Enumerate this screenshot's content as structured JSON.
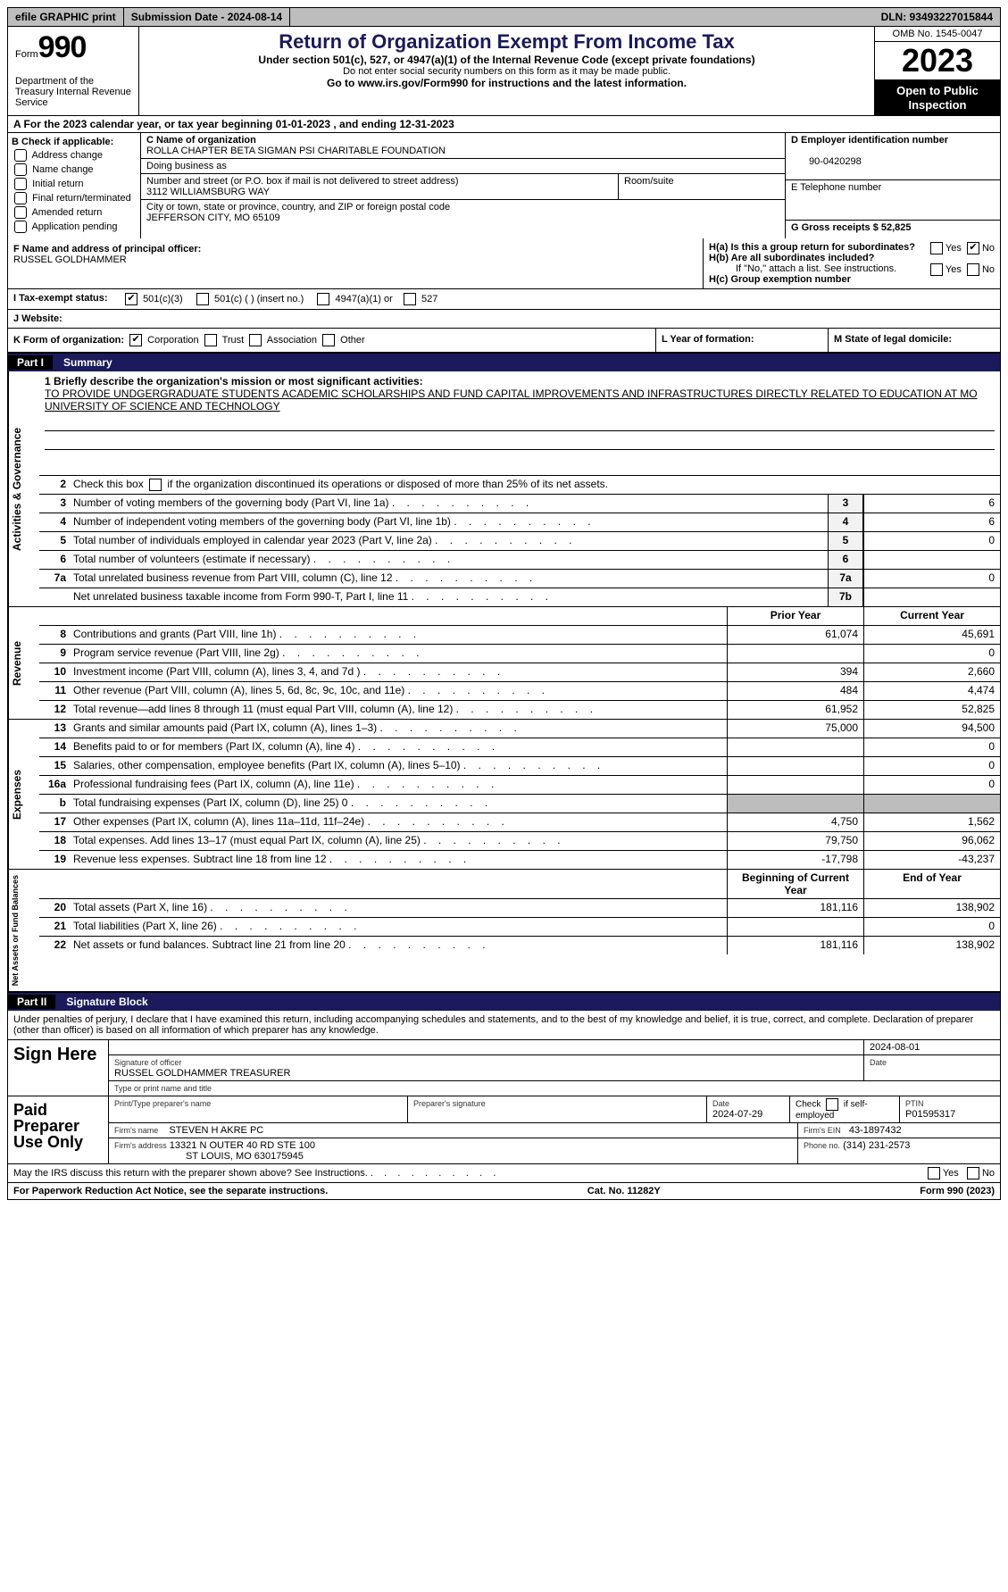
{
  "topbar": {
    "efile": "efile GRAPHIC print",
    "submission_label": "Submission Date - 2024-08-14",
    "dln": "DLN: 93493227015844"
  },
  "header": {
    "form_prefix": "Form",
    "form_number": "990",
    "dept": "Department of the Treasury Internal Revenue Service",
    "title": "Return of Organization Exempt From Income Tax",
    "subtitle": "Under section 501(c), 527, or 4947(a)(1) of the Internal Revenue Code (except private foundations)",
    "note": "Do not enter social security numbers on this form as it may be made public.",
    "link_text": "Go to www.irs.gov/Form990 for instructions and the latest information.",
    "omb": "OMB No. 1545-0047",
    "year": "2023",
    "open": "Open to Public Inspection"
  },
  "row_a": "A   For the 2023 calendar year, or tax year beginning 01-01-2023    , and ending 12-31-2023",
  "col_b": {
    "label": "B Check if applicable:",
    "items": [
      "Address change",
      "Name change",
      "Initial return",
      "Final return/terminated",
      "Amended return",
      "Application pending"
    ]
  },
  "col_c": {
    "name_label": "C Name of organization",
    "name": "ROLLA CHAPTER BETA SIGMAN PSI CHARITABLE FOUNDATION",
    "dba_label": "Doing business as",
    "addr_label": "Number and street (or P.O. box if mail is not delivered to street address)",
    "addr": "3112 WILLIAMSBURG WAY",
    "room_label": "Room/suite",
    "city_label": "City or town, state or province, country, and ZIP or foreign postal code",
    "city": "JEFFERSON CITY, MO  65109"
  },
  "col_d": {
    "ein_label": "D Employer identification number",
    "ein": "90-0420298",
    "phone_label": "E Telephone number",
    "gross_label": "G Gross receipts $ 52,825"
  },
  "f_block": {
    "label": "F  Name and address of principal officer:",
    "name": "RUSSEL GOLDHAMMER"
  },
  "h_block": {
    "ha": "H(a)  Is this a group return for subordinates?",
    "hb": "H(b)  Are all subordinates included?",
    "hb_note": "If \"No,\" attach a list. See instructions.",
    "hc": "H(c)  Group exemption number"
  },
  "i_row": {
    "label": "I    Tax-exempt status:",
    "opts": [
      "501(c)(3)",
      "501(c) (  ) (insert no.)",
      "4947(a)(1) or",
      "527"
    ]
  },
  "j_row": {
    "label": "J    Website:"
  },
  "k_row": {
    "label": "K Form of organization:",
    "opts": [
      "Corporation",
      "Trust",
      "Association",
      "Other"
    ]
  },
  "l_row": "L Year of formation:",
  "m_row": "M State of legal domicile:",
  "part1": {
    "num": "Part I",
    "title": "Summary",
    "mission_label": "1   Briefly describe the organization's mission or most significant activities:",
    "mission": "TO PROVIDE UNDGERGRADUATE STUDENTS ACADEMIC SCHOLARSHIPS AND FUND CAPITAL IMPROVEMENTS AND INFRASTRUCTURES DIRECTLY RELATED TO EDUCATION AT MO UNIVERSITY OF SCIENCE AND TECHNOLOGY",
    "line2": "2   Check this box      if the organization discontinued its operations or disposed of more than 25% of its net assets.",
    "vlabels": {
      "ag": "Activities & Governance",
      "rev": "Revenue",
      "exp": "Expenses",
      "net": "Net Assets or Fund Balances"
    },
    "gov_rows": [
      {
        "n": "3",
        "d": "Number of voting members of the governing body (Part VI, line 1a)",
        "box": "3",
        "v": "6"
      },
      {
        "n": "4",
        "d": "Number of independent voting members of the governing body (Part VI, line 1b)",
        "box": "4",
        "v": "6"
      },
      {
        "n": "5",
        "d": "Total number of individuals employed in calendar year 2023 (Part V, line 2a)",
        "box": "5",
        "v": "0"
      },
      {
        "n": "6",
        "d": "Total number of volunteers (estimate if necessary)",
        "box": "6",
        "v": ""
      },
      {
        "n": "7a",
        "d": "Total unrelated business revenue from Part VIII, column (C), line 12",
        "box": "7a",
        "v": "0"
      },
      {
        "n": "",
        "d": "Net unrelated business taxable income from Form 990-T, Part I, line 11",
        "box": "7b",
        "v": ""
      }
    ],
    "head_prior": "Prior Year",
    "head_curr": "Current Year",
    "rev_rows": [
      {
        "n": "8",
        "d": "Contributions and grants (Part VIII, line 1h)",
        "p": "61,074",
        "c": "45,691"
      },
      {
        "n": "9",
        "d": "Program service revenue (Part VIII, line 2g)",
        "p": "",
        "c": "0"
      },
      {
        "n": "10",
        "d": "Investment income (Part VIII, column (A), lines 3, 4, and 7d )",
        "p": "394",
        "c": "2,660"
      },
      {
        "n": "11",
        "d": "Other revenue (Part VIII, column (A), lines 5, 6d, 8c, 9c, 10c, and 11e)",
        "p": "484",
        "c": "4,474"
      },
      {
        "n": "12",
        "d": "Total revenue—add lines 8 through 11 (must equal Part VIII, column (A), line 12)",
        "p": "61,952",
        "c": "52,825"
      }
    ],
    "exp_rows": [
      {
        "n": "13",
        "d": "Grants and similar amounts paid (Part IX, column (A), lines 1–3)",
        "p": "75,000",
        "c": "94,500"
      },
      {
        "n": "14",
        "d": "Benefits paid to or for members (Part IX, column (A), line 4)",
        "p": "",
        "c": "0"
      },
      {
        "n": "15",
        "d": "Salaries, other compensation, employee benefits (Part IX, column (A), lines 5–10)",
        "p": "",
        "c": "0"
      },
      {
        "n": "16a",
        "d": "Professional fundraising fees (Part IX, column (A), line 11e)",
        "p": "",
        "c": "0"
      },
      {
        "n": "b",
        "d": "Total fundraising expenses (Part IX, column (D), line 25) 0",
        "p": "GRAY",
        "c": "GRAY"
      },
      {
        "n": "17",
        "d": "Other expenses (Part IX, column (A), lines 11a–11d, 11f–24e)",
        "p": "4,750",
        "c": "1,562"
      },
      {
        "n": "18",
        "d": "Total expenses. Add lines 13–17 (must equal Part IX, column (A), line 25)",
        "p": "79,750",
        "c": "96,062"
      },
      {
        "n": "19",
        "d": "Revenue less expenses. Subtract line 18 from line 12",
        "p": "-17,798",
        "c": "-43,237"
      }
    ],
    "head_begin": "Beginning of Current Year",
    "head_end": "End of Year",
    "net_rows": [
      {
        "n": "20",
        "d": "Total assets (Part X, line 16)",
        "p": "181,116",
        "c": "138,902"
      },
      {
        "n": "21",
        "d": "Total liabilities (Part X, line 26)",
        "p": "",
        "c": "0"
      },
      {
        "n": "22",
        "d": "Net assets or fund balances. Subtract line 21 from line 20",
        "p": "181,116",
        "c": "138,902"
      }
    ]
  },
  "part2": {
    "num": "Part II",
    "title": "Signature Block",
    "perjury": "Under penalties of perjury, I declare that I have examined this return, including accompanying schedules and statements, and to the best of my knowledge and belief, it is true, correct, and complete. Declaration of preparer (other than officer) is based on all information of which preparer has any knowledge.",
    "sign_here": "Sign Here",
    "sig_date": "2024-08-01",
    "sig_label": "Signature of officer",
    "officer": "RUSSEL GOLDHAMMER  TREASURER",
    "type_label": "Type or print name and title",
    "date_label": "Date",
    "paid": "Paid Preparer Use Only",
    "prep_name_label": "Print/Type preparer's name",
    "prep_sig_label": "Preparer's signature",
    "prep_date_label": "Date",
    "prep_date": "2024-07-29",
    "check_if": "Check       if self-employed",
    "ptin_label": "PTIN",
    "ptin": "P01595317",
    "firm_name_label": "Firm's name",
    "firm_name": "STEVEN H AKRE PC",
    "firm_ein_label": "Firm's EIN",
    "firm_ein": "43-1897432",
    "firm_addr_label": "Firm's address",
    "firm_addr1": "13321 N OUTER 40 RD STE 100",
    "firm_addr2": "ST LOUIS, MO  630175945",
    "phone_label": "Phone no.",
    "phone": "(314) 231-2573",
    "may": "May the IRS discuss this return with the preparer shown above? See Instructions.",
    "yes": "Yes",
    "no": "No"
  },
  "footer": {
    "pra": "For Paperwork Reduction Act Notice, see the separate instructions.",
    "cat": "Cat. No. 11282Y",
    "form": "Form 990 (2023)"
  }
}
